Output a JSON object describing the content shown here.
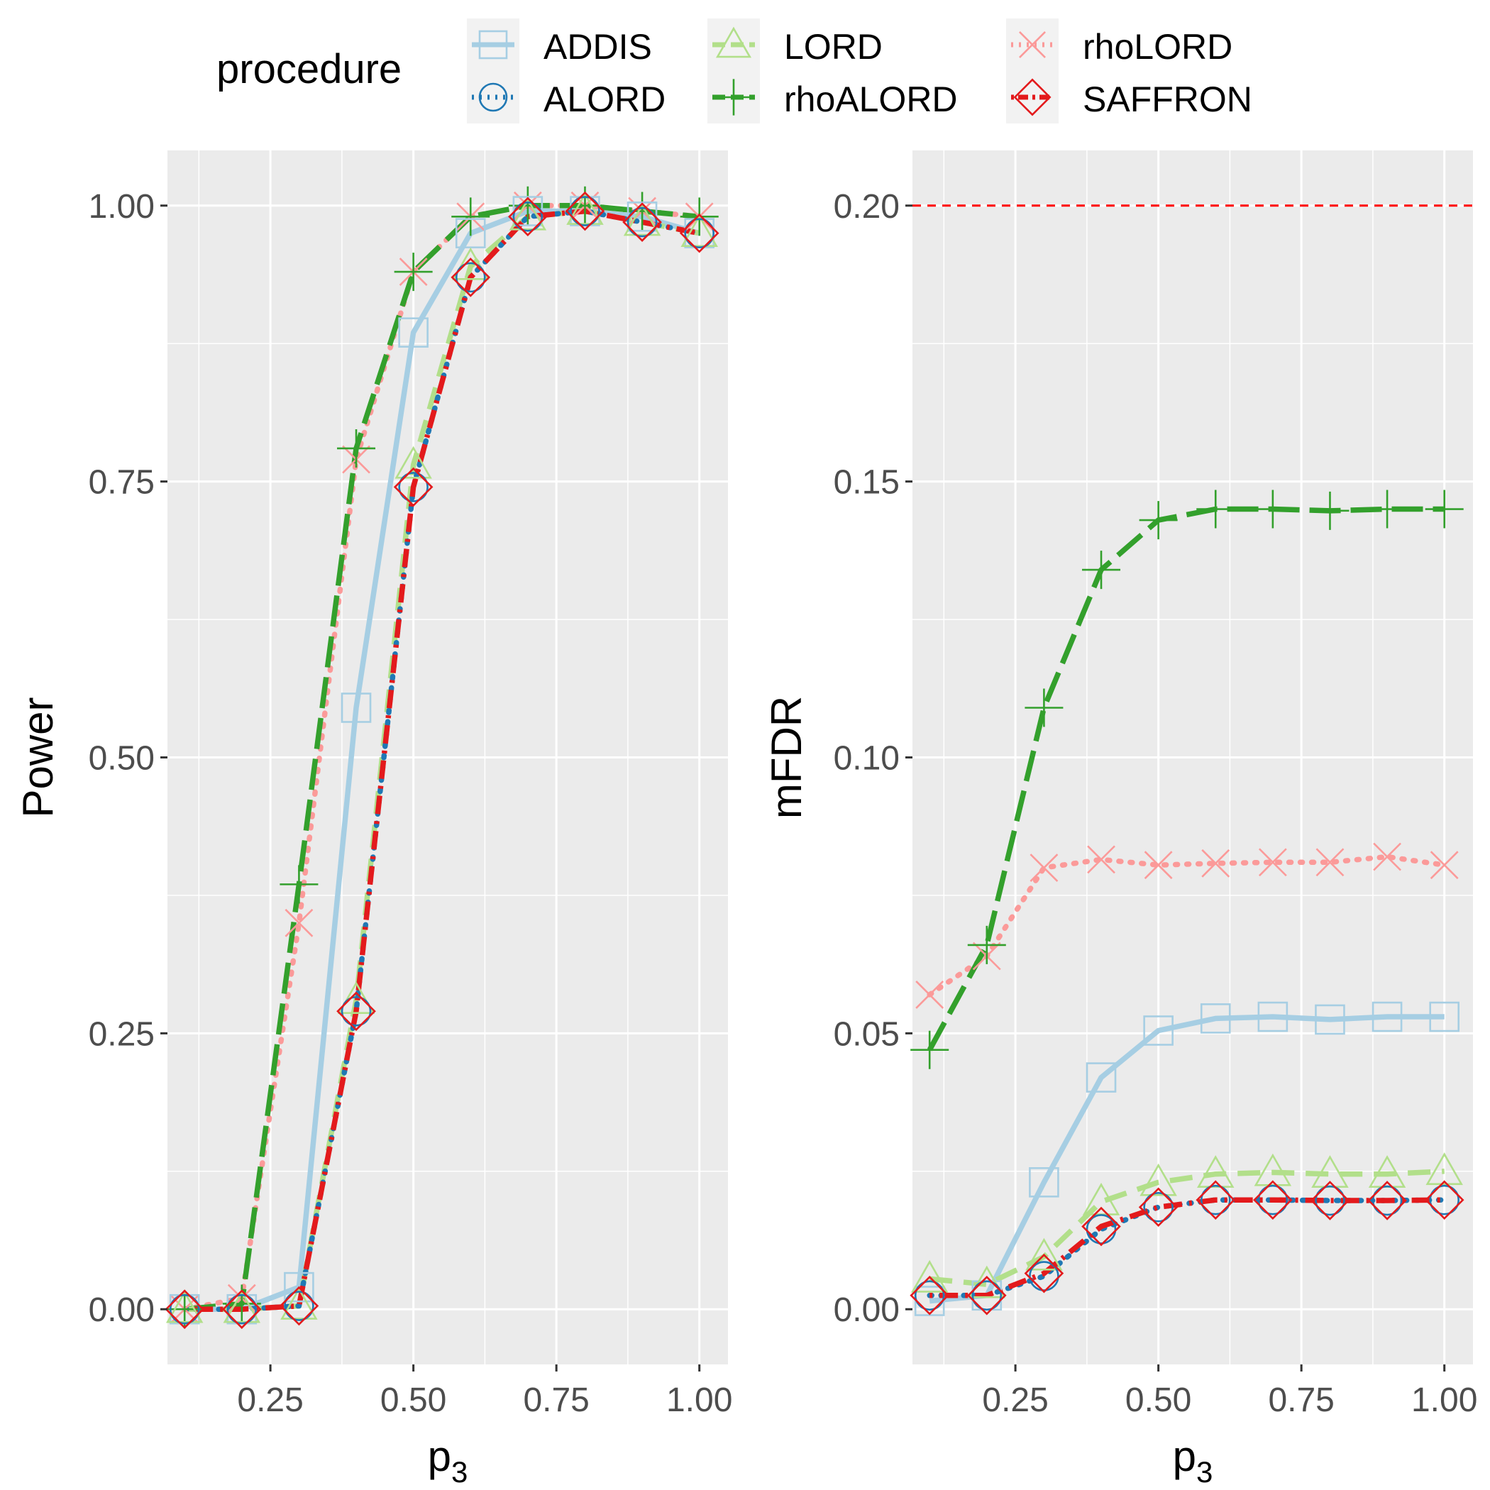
{
  "legend": {
    "title": "procedure",
    "items": [
      {
        "label": "ADDIS",
        "key": "ADDIS"
      },
      {
        "label": "ALORD",
        "key": "ALORD"
      },
      {
        "label": "LORD",
        "key": "LORD"
      },
      {
        "label": "rhoALORD",
        "key": "rhoALORD"
      },
      {
        "label": "rhoLORD",
        "key": "rhoLORD"
      },
      {
        "label": "SAFFRON",
        "key": "SAFFRON"
      }
    ]
  },
  "styles": {
    "ADDIS": {
      "color": "#a6cee3",
      "dash": "solid",
      "marker": "square"
    },
    "ALORD": {
      "color": "#1f78b4",
      "dash": "dotted",
      "marker": "circle"
    },
    "LORD": {
      "color": "#b2df8a",
      "dash": "dashed",
      "marker": "triangle"
    },
    "rhoALORD": {
      "color": "#33a02c",
      "dash": "longdash",
      "marker": "plus"
    },
    "rhoLORD": {
      "color": "#fb9a99",
      "dash": "dotted",
      "marker": "cross"
    },
    "SAFFRON": {
      "color": "#e31a1c",
      "dash": "dotdash",
      "marker": "diamond"
    }
  },
  "chart_data": [
    {
      "type": "line",
      "xlabel": "p3",
      "ylabel": "Power",
      "xlim": [
        0.07,
        1.05
      ],
      "ylim": [
        -0.05,
        1.05
      ],
      "xticks": [
        "0.25",
        "0.50",
        "0.75",
        "1.00"
      ],
      "yticks": [
        "0.00",
        "0.25",
        "0.50",
        "0.75",
        "1.00"
      ],
      "x": [
        0.1,
        0.2,
        0.3,
        0.4,
        0.5,
        0.6,
        0.7,
        0.8,
        0.9,
        1.0
      ],
      "series": [
        {
          "name": "ADDIS",
          "values": [
            0.0,
            0.0,
            0.02,
            0.545,
            0.885,
            0.975,
            0.995,
            0.995,
            0.99,
            0.975
          ]
        },
        {
          "name": "ALORD",
          "values": [
            0.0,
            0.0,
            0.003,
            0.27,
            0.745,
            0.935,
            0.99,
            0.995,
            0.985,
            0.975
          ]
        },
        {
          "name": "LORD",
          "values": [
            0.0,
            0.0,
            0.003,
            0.28,
            0.765,
            0.945,
            0.99,
            0.995,
            0.985,
            0.975
          ]
        },
        {
          "name": "rhoALORD",
          "values": [
            0.0,
            0.005,
            0.385,
            0.78,
            0.94,
            0.99,
            1.0,
            1.0,
            0.995,
            0.99
          ]
        },
        {
          "name": "rhoLORD",
          "values": [
            0.0,
            0.01,
            0.35,
            0.77,
            0.94,
            0.99,
            1.0,
            1.0,
            0.995,
            0.99
          ]
        },
        {
          "name": "SAFFRON",
          "values": [
            0.0,
            0.0,
            0.003,
            0.27,
            0.745,
            0.935,
            0.99,
            0.995,
            0.985,
            0.975
          ]
        }
      ]
    },
    {
      "type": "line",
      "xlabel": "p3",
      "ylabel": "mFDR",
      "xlim": [
        0.07,
        1.05
      ],
      "ylim": [
        -0.01,
        0.21
      ],
      "xticks": [
        "0.25",
        "0.50",
        "0.75",
        "1.00"
      ],
      "yticks": [
        "0.00",
        "0.05",
        "0.10",
        "0.15",
        "0.20"
      ],
      "reference_line": 0.2,
      "x": [
        0.1,
        0.2,
        0.3,
        0.4,
        0.5,
        0.6,
        0.7,
        0.8,
        0.9,
        1.0
      ],
      "series": [
        {
          "name": "ADDIS",
          "values": [
            0.0015,
            0.0025,
            0.023,
            0.042,
            0.0505,
            0.0527,
            0.053,
            0.0525,
            0.053,
            0.053
          ]
        },
        {
          "name": "ALORD",
          "values": [
            0.0025,
            0.0025,
            0.006,
            0.0145,
            0.0185,
            0.0198,
            0.0198,
            0.0197,
            0.0197,
            0.0198
          ]
        },
        {
          "name": "LORD",
          "values": [
            0.0055,
            0.0045,
            0.0095,
            0.0195,
            0.023,
            0.0245,
            0.0248,
            0.0245,
            0.0245,
            0.025
          ]
        },
        {
          "name": "rhoALORD",
          "values": [
            0.047,
            0.066,
            0.109,
            0.134,
            0.143,
            0.145,
            0.145,
            0.1447,
            0.145,
            0.145
          ]
        },
        {
          "name": "rhoLORD",
          "values": [
            0.057,
            0.064,
            0.08,
            0.0815,
            0.0805,
            0.0808,
            0.081,
            0.081,
            0.082,
            0.0805
          ]
        },
        {
          "name": "SAFFRON",
          "values": [
            0.0025,
            0.0025,
            0.0065,
            0.015,
            0.0185,
            0.0198,
            0.0198,
            0.0197,
            0.0197,
            0.0198
          ]
        }
      ]
    }
  ]
}
